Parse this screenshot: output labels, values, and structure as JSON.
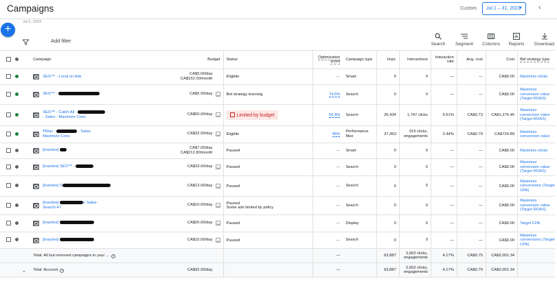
{
  "header": {
    "title": "Campaigns",
    "custom_label": "Custom",
    "date_range": "Jul 1 – 31, 2023",
    "date_sub": "Jul 1, 2023"
  },
  "toolbar": {
    "add_filter": "Add filter",
    "search": "Search",
    "segment": "Segment",
    "columns": "Columns",
    "reports": "Reports",
    "download": "Download"
  },
  "columns": {
    "campaign": "Campaign",
    "budget": "Budget",
    "status": "Status",
    "opt_score": "Optimization score",
    "type": "Campaign type",
    "impr": "Impr.",
    "interactions": "Interactions",
    "interaction_rate": "Interaction rate",
    "avg_cost": "Avg. cost",
    "cost": "Cost",
    "bid_strategy": "Bid strategy type"
  },
  "rows": [
    {
      "dot": "green",
      "name": "SEO™ - Local on Ads",
      "redact": 0,
      "budget": "CA$5.00/day",
      "budget2": "CA$152.00/month",
      "status": "Eligible",
      "opt": "—",
      "type": "Smart",
      "impr": "0",
      "inter": "0",
      "rate": "—",
      "avg": "—",
      "cost": "CA$0.00",
      "bid": "Maximize clicks",
      "chart": false
    },
    {
      "dot": "green",
      "name": "SEO™ - ",
      "redact": 60,
      "budget": "CA$5.00/day",
      "budget2": "",
      "status": "Bid strategy learning",
      "opt": "74.5%",
      "type": "Search",
      "impr": "0",
      "inter": "0",
      "rate": "—",
      "avg": "—",
      "cost": "CA$0.00",
      "bid": "Maximize conversion value (Target ROAS)",
      "chart": true
    },
    {
      "dot": "green",
      "name": "SEO™ - Catch All - ",
      "redact": 40,
      "name2": " - Sales - Maximize Conv",
      "budget": "CA$50.00/day",
      "budget2": "",
      "status": "Limited by budget",
      "limited": true,
      "opt": "59.8%",
      "type": "Search",
      "impr": "26,434",
      "inter": "1,747 clicks",
      "rate": "6.61%",
      "avg": "CA$0.73",
      "cost": "CA$1,276.45",
      "bid": "Maximize conversion value (Target ROAS)",
      "chart": true
    },
    {
      "dot": "green",
      "name": "PMax - ",
      "redact": 30,
      "name2": "Maximize Conv",
      "name2suffix": " - Sales",
      "budget": "CA$32.00/day",
      "budget2": "",
      "status": "Eligible",
      "opt": "95%",
      "type": "Performance Max",
      "impr": "37,453",
      "inter": "915 clicks, engagements",
      "rate": "2.44%",
      "avg": "CA$0.79",
      "cost": "CA$724.89",
      "bid": "Maximize conversion value",
      "chart": true
    },
    {
      "dot": "grey",
      "name": "[Inactive] ",
      "redact": 10,
      "budget": "CA$7.00/day",
      "budget2": "CA$212.80/month",
      "status": "Paused",
      "opt": "—",
      "type": "Smart",
      "impr": "0",
      "inter": "0",
      "rate": "—",
      "avg": "—",
      "cost": "CA$0.00",
      "bid": "Maximize clicks",
      "chart": false
    },
    {
      "dot": "grey",
      "name": "[Inactive] SEO™ - ",
      "redact": 26,
      "budget": "CA$33.00/day",
      "budget2": "",
      "status": "Paused",
      "opt": "—",
      "type": "Search",
      "impr": "0",
      "inter": "0",
      "rate": "—",
      "avg": "—",
      "cost": "CA$0.00",
      "bid": "Maximize conversion value (Target ROAS)",
      "chart": true
    },
    {
      "dot": "grey",
      "name": "[Inactive] S",
      "redact": 70,
      "budget": "CA$13.00/day",
      "budget2": "",
      "status": "Paused",
      "opt": "—",
      "type": "Search",
      "impr": "0",
      "inter": "0",
      "rate": "—",
      "avg": "—",
      "cost": "CA$0.00",
      "bid": "Maximize conversions (Target CPA)",
      "chart": true
    },
    {
      "dot": "grey",
      "name": "[Inactive] ",
      "redact": 34,
      "name2": "Search-47",
      "name2suffix": "e Sales-",
      "budget": "CA$10.00/day",
      "budget2": "",
      "status": "Paused",
      "status2": "Some ads limited by policy",
      "opt": "—",
      "type": "Search",
      "impr": "0",
      "inter": "0",
      "rate": "—",
      "avg": "—",
      "cost": "CA$0.00",
      "bid": "Maximize conversion value (Target ROAS)",
      "chart": true
    },
    {
      "dot": "grey",
      "name": "[Inactive] ",
      "redact": 50,
      "budget": "CA$20.00/day",
      "budget2": "",
      "status": "Paused",
      "opt": "—",
      "type": "Display",
      "impr": "0",
      "inter": "0",
      "rate": "—",
      "avg": "—",
      "cost": "CA$0.00",
      "bid": "Target CPA",
      "chart": true
    },
    {
      "dot": "grey",
      "name": "[Inactive] ",
      "redact": 50,
      "budget": "CA$15.00/day",
      "budget2": "",
      "status": "Paused",
      "opt": "—",
      "type": "Search",
      "impr": "0",
      "inter": "0",
      "rate": "—",
      "avg": "—",
      "cost": "CA$0.00",
      "bid": "Maximize conversions (Target CPA)",
      "chart": true
    }
  ],
  "totals": [
    {
      "label": "Total: All but removed campaigns in your ...",
      "budget": "",
      "opt": "—",
      "type": "",
      "impr": "63,887",
      "inter": "2,662 clicks, engagements",
      "rate": "4.17%",
      "avg": "CA$0.75",
      "cost": "CA$2,001.34"
    },
    {
      "label": "Total: Account",
      "budget": "CA$92.00/day",
      "opt": "—",
      "type": "",
      "impr": "63,887",
      "inter": "2,662 clicks, engagements",
      "rate": "4.17%",
      "avg": "CA$0.75",
      "cost": "CA$2,001.34"
    }
  ]
}
